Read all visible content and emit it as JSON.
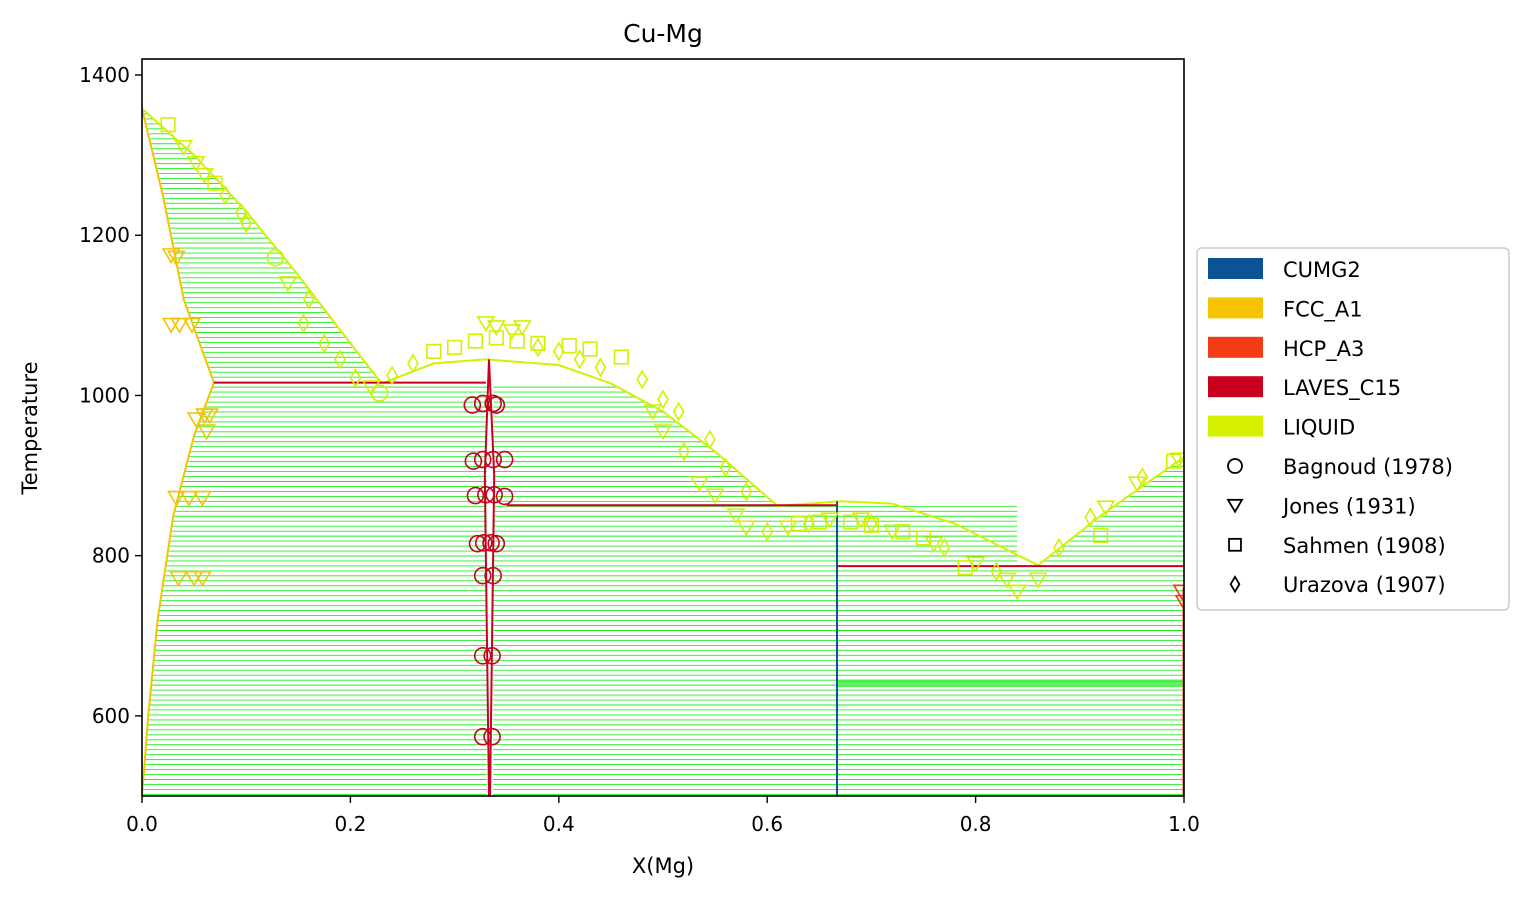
{
  "chart_data": {
    "type": "scatter",
    "title": "Cu-Mg",
    "xlabel": "X(Mg)",
    "ylabel": "Temperature",
    "xlim": [
      0.0,
      1.0
    ],
    "ylim": [
      500,
      1420
    ],
    "xticks": [
      "0.0",
      "0.2",
      "0.4",
      "0.6",
      "0.8",
      "1.0"
    ],
    "yticks": [
      "600",
      "800",
      "1000",
      "1200",
      "1400"
    ],
    "grid": false,
    "legend_position": "right",
    "phases": [
      {
        "name": "CUMG2",
        "color": "#0b5394"
      },
      {
        "name": "FCC_A1",
        "color": "#f5c400"
      },
      {
        "name": "HCP_A3",
        "color": "#f23c14"
      },
      {
        "name": "LAVES_C15",
        "color": "#c8001e"
      },
      {
        "name": "LIQUID",
        "color": "#d4f000"
      }
    ],
    "tie_line_color": "#22ee22",
    "phase_boundaries": {
      "liquidus": [
        {
          "x": [
            0.0,
            0.05,
            0.1,
            0.15,
            0.2,
            0.23
          ],
          "y": [
            1358,
            1300,
            1230,
            1150,
            1065,
            1015
          ]
        },
        {
          "x": [
            0.23,
            0.28,
            0.33,
            0.4,
            0.45,
            0.5,
            0.55,
            0.61
          ],
          "y": [
            1015,
            1040,
            1045,
            1038,
            1015,
            980,
            930,
            862
          ]
        },
        {
          "x": [
            0.61,
            0.67,
            0.72
          ],
          "y": [
            862,
            868,
            865
          ]
        },
        {
          "x": [
            0.72,
            0.78,
            0.86
          ],
          "y": [
            865,
            840,
            788
          ]
        },
        {
          "x": [
            0.86,
            0.92,
            1.0
          ],
          "y": [
            788,
            850,
            923
          ]
        }
      ],
      "fcc_solidus": {
        "x": [
          0.0,
          0.02,
          0.04,
          0.069
        ],
        "y": [
          1358,
          1250,
          1120,
          1016
        ]
      },
      "fcc_solvus": {
        "x": [
          0.069,
          0.05,
          0.03,
          0.015,
          0.006,
          0.0
        ],
        "y": [
          1016,
          950,
          850,
          720,
          600,
          500
        ]
      },
      "laves_region": {
        "x_left": [
          0.333,
          0.329,
          0.331,
          0.333
        ],
        "x_right": [
          0.333,
          0.338,
          0.336,
          0.334
        ],
        "y": [
          1045,
          900,
          700,
          500
        ]
      },
      "cumg2_line": {
        "x": 0.667,
        "y": [
          500,
          868
        ]
      },
      "invariants": [
        {
          "x": [
            0.069,
            0.33
          ],
          "y": [
            1016,
            1016
          ]
        },
        {
          "x": [
            0.35,
            0.667
          ],
          "y": [
            863,
            863
          ]
        },
        {
          "x": [
            0.667,
            1.0
          ],
          "y": [
            787,
            787
          ]
        }
      ],
      "hcp_edge": {
        "x": 1.0,
        "y": [
          500,
          760
        ]
      }
    },
    "experimental": [
      {
        "name": "Bagnoud (1978)",
        "marker": "circle",
        "points": [
          {
            "x": 0.317,
            "y": 988,
            "phase": "LAVES_C15"
          },
          {
            "x": 0.327,
            "y": 990,
            "phase": "LAVES_C15"
          },
          {
            "x": 0.337,
            "y": 990,
            "phase": "LAVES_C15"
          },
          {
            "x": 0.34,
            "y": 988,
            "phase": "LAVES_C15"
          },
          {
            "x": 0.318,
            "y": 918,
            "phase": "LAVES_C15"
          },
          {
            "x": 0.327,
            "y": 920,
            "phase": "LAVES_C15"
          },
          {
            "x": 0.337,
            "y": 920,
            "phase": "LAVES_C15"
          },
          {
            "x": 0.348,
            "y": 920,
            "phase": "LAVES_C15"
          },
          {
            "x": 0.32,
            "y": 875,
            "phase": "LAVES_C15"
          },
          {
            "x": 0.33,
            "y": 876,
            "phase": "LAVES_C15"
          },
          {
            "x": 0.338,
            "y": 876,
            "phase": "LAVES_C15"
          },
          {
            "x": 0.348,
            "y": 874,
            "phase": "LAVES_C15"
          },
          {
            "x": 0.322,
            "y": 815,
            "phase": "LAVES_C15"
          },
          {
            "x": 0.328,
            "y": 816,
            "phase": "LAVES_C15"
          },
          {
            "x": 0.335,
            "y": 816,
            "phase": "LAVES_C15"
          },
          {
            "x": 0.34,
            "y": 815,
            "phase": "LAVES_C15"
          },
          {
            "x": 0.327,
            "y": 775,
            "phase": "LAVES_C15"
          },
          {
            "x": 0.337,
            "y": 775,
            "phase": "LAVES_C15"
          },
          {
            "x": 0.327,
            "y": 675,
            "phase": "LAVES_C15"
          },
          {
            "x": 0.336,
            "y": 675,
            "phase": "LAVES_C15"
          },
          {
            "x": 0.327,
            "y": 574,
            "phase": "LAVES_C15"
          },
          {
            "x": 0.336,
            "y": 574,
            "phase": "LAVES_C15"
          },
          {
            "x": 0.128,
            "y": 1172,
            "phase": "LIQUID"
          },
          {
            "x": 0.228,
            "y": 1003,
            "phase": "LIQUID"
          }
        ]
      },
      {
        "name": "Jones (1931)",
        "marker": "triangle-down",
        "points": [
          {
            "x": 0.028,
            "y": 1175,
            "phase": "FCC_A1"
          },
          {
            "x": 0.033,
            "y": 1172,
            "phase": "FCC_A1"
          },
          {
            "x": 0.028,
            "y": 1088,
            "phase": "FCC_A1"
          },
          {
            "x": 0.036,
            "y": 1088,
            "phase": "FCC_A1"
          },
          {
            "x": 0.048,
            "y": 1088,
            "phase": "FCC_A1"
          },
          {
            "x": 0.052,
            "y": 970,
            "phase": "FCC_A1"
          },
          {
            "x": 0.06,
            "y": 975,
            "phase": "FCC_A1"
          },
          {
            "x": 0.065,
            "y": 975,
            "phase": "FCC_A1"
          },
          {
            "x": 0.062,
            "y": 955,
            "phase": "FCC_A1"
          },
          {
            "x": 0.033,
            "y": 872,
            "phase": "FCC_A1"
          },
          {
            "x": 0.045,
            "y": 872,
            "phase": "FCC_A1"
          },
          {
            "x": 0.058,
            "y": 872,
            "phase": "FCC_A1"
          },
          {
            "x": 0.035,
            "y": 772,
            "phase": "FCC_A1"
          },
          {
            "x": 0.05,
            "y": 772,
            "phase": "FCC_A1"
          },
          {
            "x": 0.058,
            "y": 772,
            "phase": "FCC_A1"
          },
          {
            "x": 0.04,
            "y": 1310,
            "phase": "LIQUID"
          },
          {
            "x": 0.052,
            "y": 1290,
            "phase": "LIQUID"
          },
          {
            "x": 0.06,
            "y": 1275,
            "phase": "LIQUID"
          },
          {
            "x": 0.14,
            "y": 1140,
            "phase": "LIQUID"
          },
          {
            "x": 0.22,
            "y": 1010,
            "phase": "LIQUID"
          },
          {
            "x": 0.33,
            "y": 1090,
            "phase": "LIQUID"
          },
          {
            "x": 0.34,
            "y": 1085,
            "phase": "LIQUID"
          },
          {
            "x": 0.355,
            "y": 1080,
            "phase": "LIQUID"
          },
          {
            "x": 0.365,
            "y": 1085,
            "phase": "LIQUID"
          },
          {
            "x": 0.49,
            "y": 980,
            "phase": "LIQUID"
          },
          {
            "x": 0.5,
            "y": 955,
            "phase": "LIQUID"
          },
          {
            "x": 0.535,
            "y": 890,
            "phase": "LIQUID"
          },
          {
            "x": 0.55,
            "y": 875,
            "phase": "LIQUID"
          },
          {
            "x": 0.57,
            "y": 850,
            "phase": "LIQUID"
          },
          {
            "x": 0.58,
            "y": 835,
            "phase": "LIQUID"
          },
          {
            "x": 0.62,
            "y": 835,
            "phase": "LIQUID"
          },
          {
            "x": 0.66,
            "y": 845,
            "phase": "LIQUID"
          },
          {
            "x": 0.69,
            "y": 845,
            "phase": "LIQUID"
          },
          {
            "x": 0.72,
            "y": 830,
            "phase": "LIQUID"
          },
          {
            "x": 0.76,
            "y": 815,
            "phase": "LIQUID"
          },
          {
            "x": 0.8,
            "y": 790,
            "phase": "LIQUID"
          },
          {
            "x": 0.83,
            "y": 770,
            "phase": "LIQUID"
          },
          {
            "x": 0.84,
            "y": 755,
            "phase": "LIQUID"
          },
          {
            "x": 0.86,
            "y": 770,
            "phase": "LIQUID"
          },
          {
            "x": 0.925,
            "y": 860,
            "phase": "LIQUID"
          },
          {
            "x": 0.955,
            "y": 890,
            "phase": "LIQUID"
          },
          {
            "x": 0.995,
            "y": 920,
            "phase": "LIQUID"
          },
          {
            "x": 0.998,
            "y": 755,
            "phase": "HCP_A3"
          },
          {
            "x": 1.0,
            "y": 742,
            "phase": "HCP_A3"
          }
        ]
      },
      {
        "name": "Sahmen (1908)",
        "marker": "square",
        "points": [
          {
            "x": 0.025,
            "y": 1338,
            "phase": "LIQUID"
          },
          {
            "x": 0.07,
            "y": 1265,
            "phase": "LIQUID"
          },
          {
            "x": 0.28,
            "y": 1055,
            "phase": "LIQUID"
          },
          {
            "x": 0.3,
            "y": 1060,
            "phase": "LIQUID"
          },
          {
            "x": 0.32,
            "y": 1068,
            "phase": "LIQUID"
          },
          {
            "x": 0.34,
            "y": 1072,
            "phase": "LIQUID"
          },
          {
            "x": 0.36,
            "y": 1068,
            "phase": "LIQUID"
          },
          {
            "x": 0.38,
            "y": 1065,
            "phase": "LIQUID"
          },
          {
            "x": 0.41,
            "y": 1062,
            "phase": "LIQUID"
          },
          {
            "x": 0.43,
            "y": 1058,
            "phase": "LIQUID"
          },
          {
            "x": 0.46,
            "y": 1048,
            "phase": "LIQUID"
          },
          {
            "x": 0.63,
            "y": 840,
            "phase": "LIQUID"
          },
          {
            "x": 0.65,
            "y": 842,
            "phase": "LIQUID"
          },
          {
            "x": 0.68,
            "y": 842,
            "phase": "LIQUID"
          },
          {
            "x": 0.7,
            "y": 838,
            "phase": "LIQUID"
          },
          {
            "x": 0.73,
            "y": 830,
            "phase": "LIQUID"
          },
          {
            "x": 0.75,
            "y": 822,
            "phase": "LIQUID"
          },
          {
            "x": 0.79,
            "y": 785,
            "phase": "LIQUID"
          },
          {
            "x": 0.92,
            "y": 825,
            "phase": "LIQUID"
          },
          {
            "x": 0.99,
            "y": 918,
            "phase": "LIQUID"
          }
        ]
      },
      {
        "name": "Urazova (1907)",
        "marker": "diamond",
        "points": [
          {
            "x": 0.08,
            "y": 1250,
            "phase": "LIQUID"
          },
          {
            "x": 0.095,
            "y": 1228,
            "phase": "LIQUID"
          },
          {
            "x": 0.1,
            "y": 1215,
            "phase": "LIQUID"
          },
          {
            "x": 0.16,
            "y": 1120,
            "phase": "LIQUID"
          },
          {
            "x": 0.155,
            "y": 1090,
            "phase": "LIQUID"
          },
          {
            "x": 0.175,
            "y": 1065,
            "phase": "LIQUID"
          },
          {
            "x": 0.19,
            "y": 1045,
            "phase": "LIQUID"
          },
          {
            "x": 0.205,
            "y": 1022,
            "phase": "LIQUID"
          },
          {
            "x": 0.24,
            "y": 1025,
            "phase": "LIQUID"
          },
          {
            "x": 0.26,
            "y": 1040,
            "phase": "LIQUID"
          },
          {
            "x": 0.38,
            "y": 1060,
            "phase": "LIQUID"
          },
          {
            "x": 0.4,
            "y": 1055,
            "phase": "LIQUID"
          },
          {
            "x": 0.42,
            "y": 1045,
            "phase": "LIQUID"
          },
          {
            "x": 0.44,
            "y": 1035,
            "phase": "LIQUID"
          },
          {
            "x": 0.48,
            "y": 1020,
            "phase": "LIQUID"
          },
          {
            "x": 0.5,
            "y": 995,
            "phase": "LIQUID"
          },
          {
            "x": 0.515,
            "y": 980,
            "phase": "LIQUID"
          },
          {
            "x": 0.52,
            "y": 930,
            "phase": "LIQUID"
          },
          {
            "x": 0.545,
            "y": 945,
            "phase": "LIQUID"
          },
          {
            "x": 0.56,
            "y": 910,
            "phase": "LIQUID"
          },
          {
            "x": 0.58,
            "y": 880,
            "phase": "LIQUID"
          },
          {
            "x": 0.6,
            "y": 830,
            "phase": "LIQUID"
          },
          {
            "x": 0.64,
            "y": 840,
            "phase": "LIQUID"
          },
          {
            "x": 0.7,
            "y": 840,
            "phase": "LIQUID"
          },
          {
            "x": 0.77,
            "y": 810,
            "phase": "LIQUID"
          },
          {
            "x": 0.82,
            "y": 780,
            "phase": "LIQUID"
          },
          {
            "x": 0.88,
            "y": 810,
            "phase": "LIQUID"
          },
          {
            "x": 0.91,
            "y": 848,
            "phase": "LIQUID"
          },
          {
            "x": 0.96,
            "y": 898,
            "phase": "LIQUID"
          }
        ]
      }
    ]
  }
}
